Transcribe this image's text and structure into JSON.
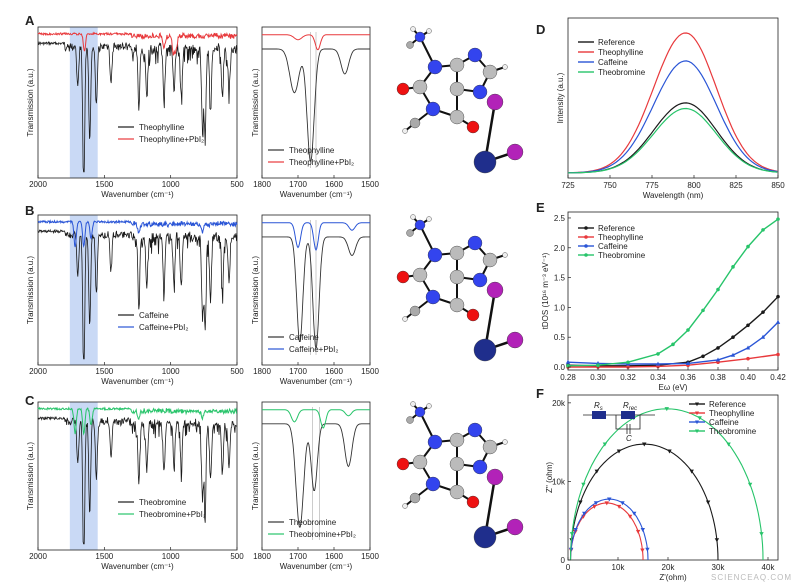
{
  "figure": {
    "watermark": "SCIENCEAQ.COM",
    "colors": {
      "black": "#1a1a1a",
      "red": "#e8393c",
      "blue": "#2a55d6",
      "green": "#27c46a",
      "highlight": "#c9d9f5",
      "navy_atom": "#1f2e8c",
      "purple_atom": "#b222b8"
    }
  },
  "panel_labels": [
    "A",
    "B",
    "C",
    "D",
    "E",
    "F"
  ],
  "ftir_rows": [
    {
      "label": "A",
      "color": "red",
      "molecule": "theophylline",
      "legend": [
        "Theophylline",
        "Theophylline+PbI₂"
      ],
      "full_xticks": [
        "2000",
        "1500",
        "1000",
        "500"
      ],
      "zoom_xticks": [
        "1800",
        "1700",
        "1600",
        "1500"
      ]
    },
    {
      "label": "B",
      "color": "blue",
      "molecule": "caffeine",
      "legend": [
        "Caffeine",
        "Caffeine+PbI₂"
      ],
      "full_xticks": [
        "2000",
        "1500",
        "1000",
        "500"
      ],
      "zoom_xticks": [
        "1800",
        "1700",
        "1600",
        "1500"
      ]
    },
    {
      "label": "C",
      "color": "green",
      "molecule": "theobromine",
      "legend": [
        "Theobromine",
        "Theobromine+PbI₂"
      ],
      "full_xticks": [
        "2000",
        "1500",
        "1000",
        "500"
      ],
      "zoom_xticks": [
        "1800",
        "1700",
        "1600",
        "1500"
      ]
    }
  ],
  "ftir_axes": {
    "xlabel": "Wavenumber (cm⁻¹)",
    "ylabel": "Transmission (a.u.)"
  },
  "chart_data": [
    {
      "panel": "D",
      "type": "line",
      "xlabel": "Wavelength (nm)",
      "ylabel": "Intensity (a.u.)",
      "xlim": [
        725,
        850
      ],
      "xticks": [
        725,
        750,
        775,
        800,
        825,
        850
      ],
      "grid": false,
      "legend_position": "top-left",
      "series": [
        {
          "name": "Reference",
          "color": "#1a1a1a",
          "peak_x": 795,
          "peak_y": 0.5
        },
        {
          "name": "Theophylline",
          "color": "#e8393c",
          "peak_x": 795,
          "peak_y": 1.0
        },
        {
          "name": "Caffeine",
          "color": "#2a55d6",
          "peak_x": 795,
          "peak_y": 0.8
        },
        {
          "name": "Theobromine",
          "color": "#27c46a",
          "peak_x": 795,
          "peak_y": 0.46
        }
      ]
    },
    {
      "panel": "E",
      "type": "line",
      "xlabel": "Eω (eV)",
      "ylabel": "tDOS (10¹⁶ m⁻³ eV⁻¹)",
      "xlim": [
        0.28,
        0.42
      ],
      "ylim": [
        -0.05,
        2.6
      ],
      "xticks": [
        "0.28",
        "0.30",
        "0.32",
        "0.34",
        "0.36",
        "0.38",
        "0.40",
        "0.42"
      ],
      "yticks": [
        "0.0",
        "0.5",
        "1.0",
        "1.5",
        "2.0",
        "2.5"
      ],
      "grid": false,
      "legend_position": "top-left",
      "series": [
        {
          "name": "Reference",
          "color": "#1a1a1a",
          "x": [
            0.28,
            0.3,
            0.32,
            0.34,
            0.36,
            0.37,
            0.38,
            0.39,
            0.4,
            0.41,
            0.42
          ],
          "y": [
            0.03,
            0.02,
            0.02,
            0.03,
            0.08,
            0.18,
            0.32,
            0.5,
            0.7,
            0.92,
            1.18
          ]
        },
        {
          "name": "Theophylline",
          "color": "#e8393c",
          "x": [
            0.28,
            0.3,
            0.32,
            0.34,
            0.36,
            0.38,
            0.4,
            0.42
          ],
          "y": [
            0.0,
            0.0,
            0.0,
            0.01,
            0.03,
            0.08,
            0.14,
            0.21
          ]
        },
        {
          "name": "Caffeine",
          "color": "#2a55d6",
          "x": [
            0.28,
            0.3,
            0.32,
            0.34,
            0.36,
            0.38,
            0.39,
            0.4,
            0.41,
            0.42
          ],
          "y": [
            0.08,
            0.06,
            0.05,
            0.05,
            0.06,
            0.12,
            0.2,
            0.32,
            0.5,
            0.75
          ]
        },
        {
          "name": "Theobromine",
          "color": "#27c46a",
          "x": [
            0.28,
            0.3,
            0.32,
            0.34,
            0.35,
            0.36,
            0.37,
            0.38,
            0.39,
            0.4,
            0.41,
            0.42
          ],
          "y": [
            0.02,
            0.03,
            0.08,
            0.22,
            0.38,
            0.62,
            0.95,
            1.3,
            1.68,
            2.02,
            2.3,
            2.48
          ]
        }
      ]
    },
    {
      "panel": "F",
      "type": "scatter",
      "xlabel": "Z'(ohm)",
      "ylabel": "Z'' (ohm)",
      "xlim": [
        0,
        42000
      ],
      "ylim": [
        0,
        21000
      ],
      "xticks": [
        "0",
        "10k",
        "20k",
        "30k",
        "40k"
      ],
      "yticks": [
        "0",
        "10k",
        "20k"
      ],
      "grid": false,
      "legend_position": "top-right",
      "circuit": {
        "r1": "R_s",
        "r2": "R_rec",
        "c": "C"
      },
      "series": [
        {
          "name": "Reference",
          "color": "#1a1a1a",
          "rs": 500,
          "rrec": 29500
        },
        {
          "name": "Theophylline",
          "color": "#e8393c",
          "rs": 500,
          "rrec": 14500
        },
        {
          "name": "Caffeine",
          "color": "#2a55d6",
          "rs": 500,
          "rrec": 15500
        },
        {
          "name": "Theobromine",
          "color": "#27c46a",
          "rs": 500,
          "rrec": 38500
        }
      ]
    }
  ]
}
